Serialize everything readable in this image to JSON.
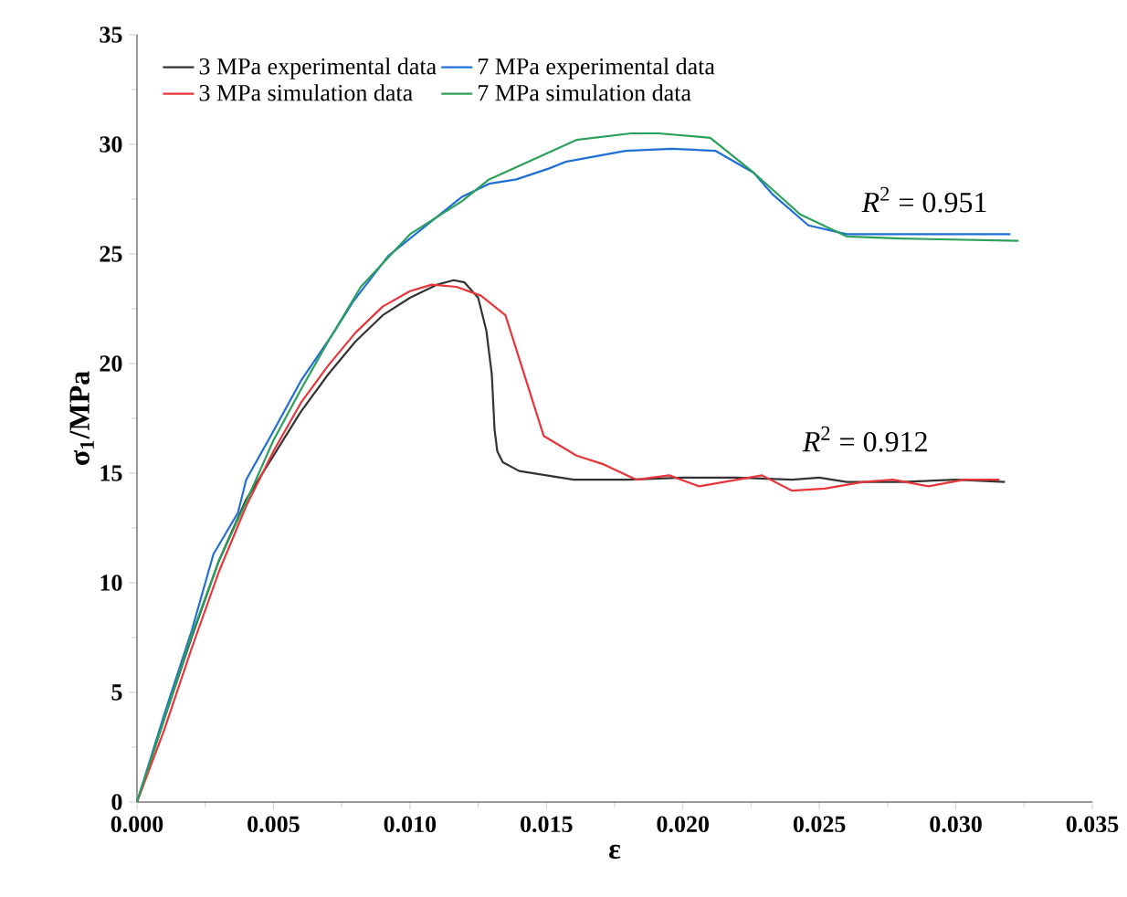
{
  "chart_data": {
    "type": "line",
    "xlabel": "ε",
    "ylabel": "**σ$_{1}$/MPa**",
    "xlim": [
      0,
      0.035
    ],
    "ylim": [
      0,
      35
    ],
    "xticks": [
      {
        "value": 0,
        "label": "0.000"
      },
      {
        "value": 0.005,
        "label": "0.005"
      },
      {
        "value": 0.01,
        "label": "0.010"
      },
      {
        "value": 0.015,
        "label": "0.015"
      },
      {
        "value": 0.02,
        "label": "0.020"
      },
      {
        "value": 0.025,
        "label": "0.025"
      },
      {
        "value": 0.03,
        "label": "0.030"
      },
      {
        "value": 0.035,
        "label": "0.035"
      }
    ],
    "yticks": [
      0,
      5,
      10,
      15,
      20,
      25,
      30,
      35
    ],
    "legend": "top left",
    "series": [
      {
        "name": "3 MPa experimental data",
        "color": "#333333",
        "x": [
          0,
          0.001,
          0.002,
          0.003,
          0.004,
          0.005,
          0.006,
          0.007,
          0.008,
          0.009,
          0.01,
          0.011,
          0.0116,
          0.012,
          0.0125,
          0.0128,
          0.013,
          0.0131,
          0.0132,
          0.0134,
          0.014,
          0.015,
          0.016,
          0.017,
          0.018,
          0.02,
          0.022,
          0.024,
          0.025,
          0.026,
          0.028,
          0.03,
          0.0318
        ],
        "values": [
          0,
          3.8,
          7.5,
          11,
          13.8,
          15.8,
          17.8,
          19.5,
          21,
          22.2,
          23,
          23.6,
          23.8,
          23.7,
          23,
          21.5,
          19.5,
          17,
          16,
          15.5,
          15.1,
          14.9,
          14.7,
          14.7,
          14.7,
          14.8,
          14.8,
          14.7,
          14.8,
          14.6,
          14.6,
          14.7,
          14.6
        ]
      },
      {
        "name": "7 MPa experimental data",
        "color": "#1f6fd6",
        "x": [
          0,
          0.001,
          0.002,
          0.0028,
          0.0037,
          0.004,
          0.0049,
          0.006,
          0.0072,
          0.0079,
          0.0092,
          0.0107,
          0.0119,
          0.0129,
          0.0139,
          0.0151,
          0.0157,
          0.0179,
          0.0196,
          0.0212,
          0.0226,
          0.0233,
          0.0246,
          0.026,
          0.0307,
          0.032
        ],
        "values": [
          0,
          4,
          7.8,
          11.3,
          13.2,
          14.7,
          16.7,
          19.2,
          21.4,
          22.8,
          24.9,
          26.4,
          27.6,
          28.2,
          28.4,
          28.9,
          29.2,
          29.7,
          29.8,
          29.7,
          28.7,
          27.7,
          26.3,
          25.9,
          25.9,
          25.9
        ]
      },
      {
        "name": "3 MPa simulation data",
        "color": "#e8353a",
        "x": [
          0,
          0.001,
          0.002,
          0.003,
          0.004,
          0.005,
          0.006,
          0.007,
          0.008,
          0.009,
          0.01,
          0.0108,
          0.0117,
          0.0126,
          0.0135,
          0.0149,
          0.0161,
          0.0171,
          0.0183,
          0.0195,
          0.0206,
          0.0229,
          0.024,
          0.0252,
          0.0266,
          0.0277,
          0.029,
          0.0303,
          0.0316
        ],
        "values": [
          0,
          3.3,
          7,
          10.5,
          13.5,
          16,
          18.2,
          19.9,
          21.4,
          22.6,
          23.3,
          23.6,
          23.5,
          23.1,
          22.2,
          16.7,
          15.8,
          15.4,
          14.7,
          14.9,
          14.4,
          14.9,
          14.2,
          14.3,
          14.6,
          14.7,
          14.4,
          14.7,
          14.7
        ]
      },
      {
        "name": "7 MPa simulation data",
        "color": "#2ca05a",
        "x": [
          0,
          0.001,
          0.002,
          0.003,
          0.004,
          0.005,
          0.006,
          0.007,
          0.0082,
          0.01,
          0.0119,
          0.0129,
          0.0161,
          0.0181,
          0.0191,
          0.021,
          0.0226,
          0.0243,
          0.026,
          0.028,
          0.0323
        ],
        "values": [
          0,
          3.8,
          7.6,
          11,
          13.7,
          16.5,
          18.8,
          21,
          23.5,
          25.9,
          27.4,
          28.4,
          30.2,
          30.5,
          30.5,
          30.3,
          28.7,
          26.8,
          25.8,
          25.7,
          25.6
        ]
      }
    ],
    "annotations": [
      "*R*$^{2}$ = 0.951",
      "*R*$^{2}$ = 0.912"
    ]
  }
}
